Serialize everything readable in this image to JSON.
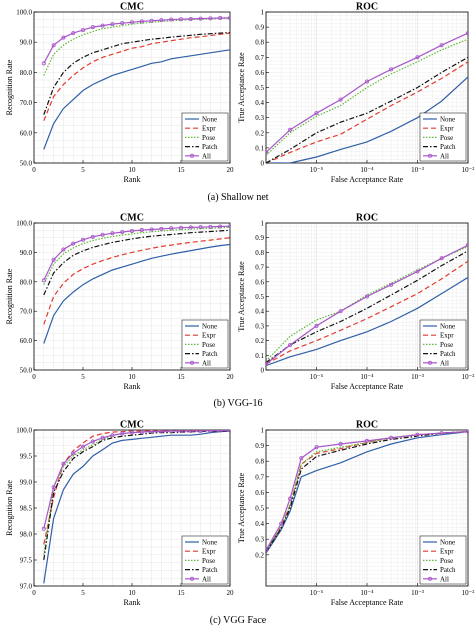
{
  "rows": [
    {
      "caption": "(a) Shallow net",
      "cmc": {
        "title": "CMC",
        "xlabel": "Rank",
        "ylabel": "Recognition Rate",
        "xlim": [
          0,
          20
        ],
        "ylim": [
          50,
          100
        ],
        "xticks": [
          0,
          5,
          10,
          15,
          20
        ],
        "xtick_labels": [
          "0",
          "5",
          "10",
          "15",
          "20"
        ],
        "yticks": [
          50,
          60,
          70,
          80,
          90,
          100
        ],
        "ytick_labels": [
          "50.0",
          "60.0",
          "70.0",
          "80.0",
          "90.0",
          "100.0"
        ]
      },
      "roc": {
        "title": "ROC",
        "xlabel": "False Acceptance Rate",
        "ylabel": "True Acceptance Rate",
        "ylim": [
          0,
          1
        ],
        "yticks": [
          0,
          0.1,
          0.2,
          0.3,
          0.4,
          0.5,
          0.6,
          0.7,
          0.8,
          0.9,
          1
        ],
        "ytick_labels": [
          "0",
          "0.1",
          "0.2",
          "0.3",
          "0.4",
          "0.5",
          "0.6",
          "0.7",
          "0.8",
          "0.9",
          "1"
        ],
        "xticks": [
          -5,
          -4,
          -3,
          -2
        ],
        "xtick_labels": [
          "10⁻⁵",
          "10⁻⁴",
          "10⁻³",
          "10⁻²"
        ]
      }
    },
    {
      "caption": "(b) VGG-16",
      "cmc": {
        "title": "CMC",
        "xlabel": "Rank",
        "ylabel": "Recognition Rate",
        "xlim": [
          0,
          20
        ],
        "ylim": [
          50,
          100
        ],
        "xticks": [
          0,
          5,
          10,
          15,
          20
        ],
        "xtick_labels": [
          "0",
          "5",
          "10",
          "15",
          "20"
        ],
        "yticks": [
          50,
          60,
          70,
          80,
          90,
          100
        ],
        "ytick_labels": [
          "50.0",
          "60.0",
          "70.0",
          "80.0",
          "90.0",
          "100.0"
        ]
      },
      "roc": {
        "title": "ROC",
        "xlabel": "False Acceptance Rate",
        "ylabel": "True Acceptance Rate",
        "ylim": [
          0,
          1
        ],
        "yticks": [
          0,
          0.1,
          0.2,
          0.3,
          0.4,
          0.5,
          0.6,
          0.7,
          0.8,
          0.9,
          1
        ],
        "ytick_labels": [
          "0",
          "0.1",
          "0.2",
          "0.3",
          "0.4",
          "0.5",
          "0.6",
          "0.7",
          "0.8",
          "0.9",
          "1"
        ],
        "xticks": [
          -5,
          -4,
          -3,
          -2
        ],
        "xtick_labels": [
          "10⁻⁵",
          "10⁻⁴",
          "10⁻³",
          "10⁻²"
        ]
      }
    },
    {
      "caption": "(c) VGG Face",
      "cmc": {
        "title": "CMC",
        "xlabel": "Rank",
        "ylabel": "Recognition Rate",
        "xlim": [
          0,
          20
        ],
        "ylim": [
          97,
          100
        ],
        "xticks": [
          0,
          5,
          10,
          15,
          20
        ],
        "xtick_labels": [
          "0",
          "5",
          "10",
          "15",
          "20"
        ],
        "yticks": [
          97,
          97.5,
          98,
          98.5,
          99,
          99.5,
          100
        ],
        "ytick_labels": [
          "97.0",
          "97.5",
          "98.0",
          "98.5",
          "99.0",
          "99.5",
          "100.0"
        ]
      },
      "roc": {
        "title": "ROC",
        "xlabel": "False Acceptance Rate",
        "ylabel": "True Acceptance Rate",
        "ylim": [
          0,
          1
        ],
        "yticks": [
          0.2,
          0.3,
          0.4,
          0.5,
          0.6,
          0.7,
          0.8,
          0.9,
          1
        ],
        "ytick_labels": [
          "0.2",
          "0.3",
          "0.4",
          "0.5",
          "0.6",
          "0.7",
          "0.8",
          "0.9",
          "1"
        ],
        "xticks": [
          -5,
          -4,
          -3,
          -2
        ],
        "xtick_labels": [
          "10⁻⁵",
          "10⁻⁴",
          "10⁻³",
          "10⁻²"
        ]
      }
    }
  ],
  "series_styles": [
    {
      "name": "None",
      "color": "#2f5fa7",
      "dash": "solid",
      "marker": "none"
    },
    {
      "name": "Expr",
      "color": "#e23b2e",
      "dash": "dashed",
      "marker": "none"
    },
    {
      "name": "Pose",
      "color": "#5cb832",
      "dash": "dotted",
      "marker": "none"
    },
    {
      "name": "Patch",
      "color": "#111111",
      "dash": "dashdot",
      "marker": "none"
    },
    {
      "name": "All",
      "color": "#a855c8",
      "dash": "solid",
      "marker": "circle"
    }
  ],
  "legend_placement": "bottom-right",
  "grid": true,
  "chart_data": [
    {
      "type": "line",
      "panel": "a-cmc",
      "title": "CMC",
      "xlabel": "Rank",
      "ylabel": "Recognition Rate",
      "ylim": [
        50,
        100
      ],
      "x": [
        1,
        2,
        3,
        4,
        5,
        6,
        7,
        8,
        9,
        10,
        11,
        12,
        13,
        14,
        15,
        16,
        17,
        18,
        19,
        20
      ],
      "series": [
        {
          "name": "None",
          "values": [
            54.5,
            63,
            68,
            71,
            74,
            76,
            77.5,
            79,
            80,
            81,
            82,
            83,
            83.5,
            84.5,
            85,
            85.5,
            86,
            86.5,
            87,
            87.5
          ]
        },
        {
          "name": "Expr",
          "values": [
            64,
            72,
            76,
            79,
            81.5,
            83.5,
            85,
            86,
            87,
            88,
            88.5,
            89.5,
            90,
            90.5,
            91,
            91.5,
            91.8,
            92.2,
            92.6,
            93
          ]
        },
        {
          "name": "Pose",
          "values": [
            79,
            86,
            89,
            91,
            92.5,
            93.5,
            94.5,
            95,
            95.5,
            96,
            96.3,
            96.6,
            96.9,
            97.1,
            97.3,
            97.5,
            97.6,
            97.7,
            97.8,
            97.9
          ]
        },
        {
          "name": "Patch",
          "values": [
            66,
            75,
            80,
            83,
            85,
            86.5,
            87.5,
            88.5,
            89.5,
            90,
            90.5,
            91,
            91.3,
            91.7,
            92,
            92.3,
            92.6,
            92.8,
            93,
            93.2
          ]
        },
        {
          "name": "All",
          "values": [
            83,
            89,
            91.5,
            93,
            94,
            95,
            95.5,
            96,
            96.3,
            96.6,
            96.9,
            97.1,
            97.3,
            97.5,
            97.6,
            97.7,
            97.8,
            97.9,
            98,
            98
          ]
        }
      ]
    },
    {
      "type": "line",
      "panel": "a-roc",
      "title": "ROC",
      "xlabel": "False Acceptance Rate",
      "ylabel": "True Acceptance Rate",
      "xscale": "log",
      "xlim": [
        1e-06,
        0.01
      ],
      "ylim": [
        0,
        1
      ],
      "x": [
        1e-06,
        3e-06,
        1e-05,
        3e-05,
        0.0001,
        0.0003,
        0.001,
        0.003,
        0.01
      ],
      "series": [
        {
          "name": "None",
          "values": [
            0,
            0,
            0.04,
            0.09,
            0.14,
            0.21,
            0.3,
            0.41,
            0.57
          ]
        },
        {
          "name": "Expr",
          "values": [
            0,
            0.07,
            0.14,
            0.19,
            0.29,
            0.38,
            0.47,
            0.56,
            0.67
          ]
        },
        {
          "name": "Pose",
          "values": [
            0.05,
            0.2,
            0.31,
            0.38,
            0.5,
            0.59,
            0.67,
            0.75,
            0.82
          ]
        },
        {
          "name": "Patch",
          "values": [
            0,
            0.09,
            0.2,
            0.27,
            0.33,
            0.41,
            0.5,
            0.6,
            0.7
          ]
        },
        {
          "name": "All",
          "values": [
            0.07,
            0.22,
            0.33,
            0.42,
            0.54,
            0.62,
            0.7,
            0.78,
            0.86
          ]
        }
      ]
    },
    {
      "type": "line",
      "panel": "b-cmc",
      "title": "CMC",
      "xlabel": "Rank",
      "ylabel": "Recognition Rate",
      "ylim": [
        50,
        100
      ],
      "x": [
        1,
        2,
        3,
        4,
        5,
        6,
        7,
        8,
        9,
        10,
        11,
        12,
        13,
        14,
        15,
        16,
        17,
        18,
        19,
        20
      ],
      "series": [
        {
          "name": "None",
          "values": [
            59,
            68.5,
            73.5,
            76.5,
            79,
            81,
            82.5,
            84,
            85,
            86,
            87,
            88,
            88.7,
            89.4,
            90,
            90.6,
            91.2,
            91.8,
            92.3,
            92.7
          ]
        },
        {
          "name": "Expr",
          "values": [
            65.5,
            75,
            79.5,
            82.5,
            84.5,
            86,
            87.2,
            88.3,
            89.2,
            90,
            90.7,
            91.4,
            92,
            92.5,
            93,
            93.4,
            93.8,
            94.2,
            94.6,
            95
          ]
        },
        {
          "name": "Pose",
          "values": [
            79,
            86,
            89.5,
            91.5,
            93,
            94,
            94.8,
            95.4,
            95.9,
            96.3,
            96.7,
            97,
            97.3,
            97.5,
            97.7,
            97.9,
            98.1,
            98.2,
            98.4,
            98.5
          ]
        },
        {
          "name": "Patch",
          "values": [
            75.5,
            83,
            86.5,
            89,
            90.5,
            91.7,
            92.6,
            93.4,
            94,
            94.6,
            95.1,
            95.5,
            95.8,
            96.1,
            96.4,
            96.7,
            96.9,
            97.1,
            97.3,
            97.5
          ]
        },
        {
          "name": "All",
          "values": [
            80.5,
            87.5,
            91,
            93,
            94.3,
            95.3,
            96,
            96.5,
            96.9,
            97.3,
            97.6,
            97.8,
            98,
            98.2,
            98.4,
            98.5,
            98.6,
            98.7,
            98.8,
            98.9
          ]
        }
      ]
    },
    {
      "type": "line",
      "panel": "b-roc",
      "title": "ROC",
      "xlabel": "False Acceptance Rate",
      "ylabel": "True Acceptance Rate",
      "xscale": "log",
      "xlim": [
        1e-06,
        0.01
      ],
      "ylim": [
        0,
        1
      ],
      "x": [
        1e-06,
        3e-06,
        1e-05,
        3e-05,
        0.0001,
        0.0003,
        0.001,
        0.003,
        0.01
      ],
      "series": [
        {
          "name": "None",
          "values": [
            0.03,
            0.09,
            0.14,
            0.2,
            0.26,
            0.33,
            0.42,
            0.52,
            0.63
          ]
        },
        {
          "name": "Expr",
          "values": [
            0.04,
            0.13,
            0.2,
            0.27,
            0.35,
            0.43,
            0.52,
            0.62,
            0.74
          ]
        },
        {
          "name": "Pose",
          "values": [
            0.06,
            0.23,
            0.34,
            0.4,
            0.51,
            0.59,
            0.68,
            0.76,
            0.84
          ]
        },
        {
          "name": "Patch",
          "values": [
            0.05,
            0.17,
            0.26,
            0.33,
            0.42,
            0.51,
            0.61,
            0.71,
            0.81
          ]
        },
        {
          "name": "All",
          "values": [
            0.04,
            0.17,
            0.3,
            0.4,
            0.5,
            0.58,
            0.67,
            0.76,
            0.85
          ]
        }
      ]
    },
    {
      "type": "line",
      "panel": "c-cmc",
      "title": "CMC",
      "xlabel": "Rank",
      "ylabel": "Recognition Rate",
      "ylim": [
        97,
        100
      ],
      "x": [
        1,
        2,
        3,
        4,
        5,
        6,
        7,
        8,
        9,
        10,
        11,
        12,
        13,
        14,
        15,
        16,
        17,
        18,
        19,
        20
      ],
      "series": [
        {
          "name": "None",
          "values": [
            97.05,
            98.3,
            98.85,
            99.15,
            99.3,
            99.5,
            99.62,
            99.75,
            99.8,
            99.82,
            99.84,
            99.86,
            99.88,
            99.9,
            99.9,
            99.9,
            99.92,
            99.95,
            99.97,
            99.98
          ]
        },
        {
          "name": "Expr",
          "values": [
            97.8,
            98.7,
            99.35,
            99.6,
            99.75,
            99.88,
            99.93,
            99.96,
            99.97,
            99.98,
            99.98,
            99.98,
            99.98,
            99.99,
            99.99,
            99.99,
            99.99,
            99.99,
            99.99,
            99.99
          ]
        },
        {
          "name": "Pose",
          "values": [
            97.6,
            98.9,
            99.3,
            99.5,
            99.62,
            99.72,
            99.82,
            99.9,
            99.93,
            99.95,
            99.96,
            99.97,
            99.97,
            99.98,
            99.98,
            99.98,
            99.98,
            99.99,
            99.99,
            99.99
          ]
        },
        {
          "name": "Patch",
          "values": [
            97.5,
            98.8,
            99.2,
            99.45,
            99.58,
            99.68,
            99.8,
            99.85,
            99.88,
            99.9,
            99.92,
            99.94,
            99.95,
            99.95,
            99.96,
            99.97,
            99.97,
            99.98,
            99.98,
            99.98
          ]
        },
        {
          "name": "All",
          "values": [
            98.1,
            98.9,
            99.35,
            99.55,
            99.68,
            99.78,
            99.85,
            99.9,
            99.93,
            99.95,
            99.96,
            99.97,
            99.97,
            99.98,
            99.98,
            99.98,
            99.98,
            99.99,
            99.99,
            99.99
          ]
        }
      ]
    },
    {
      "type": "line",
      "panel": "c-roc",
      "title": "ROC",
      "xlabel": "False Acceptance Rate",
      "ylabel": "True Acceptance Rate",
      "xscale": "log",
      "xlim": [
        1e-06,
        0.01
      ],
      "ylim": [
        0.2,
        1
      ],
      "x": [
        1e-06,
        2e-06,
        3e-06,
        5e-06,
        1e-05,
        3e-05,
        0.0001,
        0.0003,
        0.001,
        0.003,
        0.01
      ],
      "series": [
        {
          "name": "None",
          "values": [
            0.21,
            0.36,
            0.48,
            0.7,
            0.74,
            0.79,
            0.86,
            0.91,
            0.95,
            0.97,
            0.99
          ]
        },
        {
          "name": "Expr",
          "values": [
            0.22,
            0.38,
            0.52,
            0.78,
            0.85,
            0.88,
            0.92,
            0.95,
            0.97,
            0.98,
            0.99
          ]
        },
        {
          "name": "Pose",
          "values": [
            0.22,
            0.38,
            0.52,
            0.78,
            0.86,
            0.89,
            0.92,
            0.95,
            0.97,
            0.98,
            0.99
          ]
        },
        {
          "name": "Patch",
          "values": [
            0.22,
            0.37,
            0.5,
            0.75,
            0.83,
            0.87,
            0.91,
            0.94,
            0.96,
            0.98,
            0.99
          ]
        },
        {
          "name": "All",
          "values": [
            0.23,
            0.4,
            0.56,
            0.82,
            0.89,
            0.91,
            0.93,
            0.95,
            0.97,
            0.98,
            0.99
          ]
        }
      ]
    }
  ]
}
